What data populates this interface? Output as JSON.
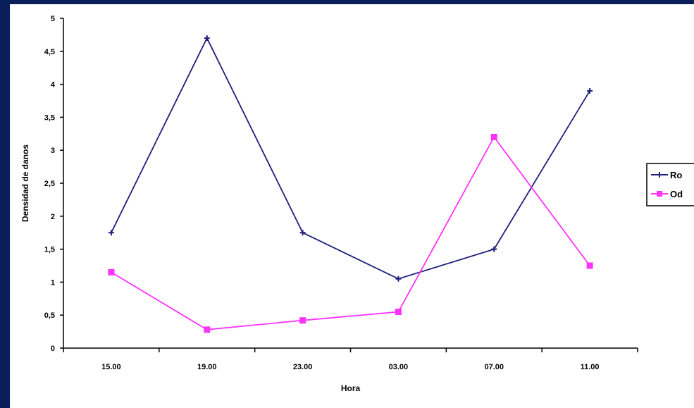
{
  "colors": {
    "series1": "#1f1f7a",
    "series2": "#ff33ff",
    "background": "#ffffff",
    "frame": "#0b1e5c"
  },
  "chart_data": {
    "type": "line",
    "title": "",
    "xlabel": "Hora",
    "ylabel": "Densidad de danos",
    "categories": [
      "15.00",
      "19.00",
      "23.00",
      "03.00",
      "07.00",
      "11.00"
    ],
    "ylim": [
      0,
      5
    ],
    "yticks": [
      "0",
      "0,5",
      "1",
      "1,5",
      "2",
      "2,5",
      "3",
      "3,5",
      "4",
      "4,5",
      "5"
    ],
    "grid": false,
    "legend_position": "right",
    "series": [
      {
        "name": "Ro",
        "marker": "plus",
        "values": [
          1.75,
          4.7,
          1.75,
          1.05,
          1.5,
          3.9
        ]
      },
      {
        "name": "Od",
        "marker": "square",
        "values": [
          1.15,
          0.28,
          0.42,
          0.55,
          3.2,
          1.25
        ]
      }
    ]
  }
}
